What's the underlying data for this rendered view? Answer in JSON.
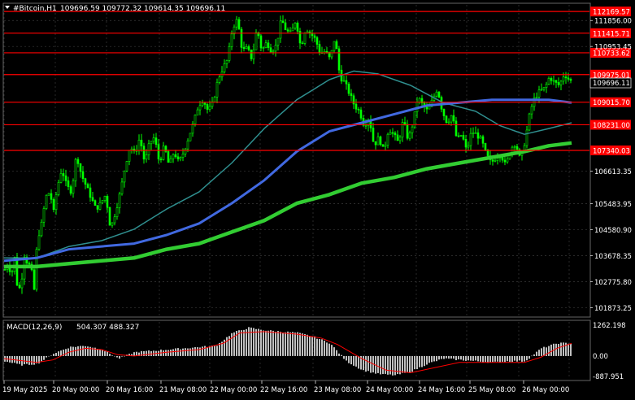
{
  "header": {
    "symbol_label": "#Bitcoin,H1",
    "ohlc": "109696.59 109772.32 109614.35 109696.11"
  },
  "indicator": {
    "name": "MACD(12,26,9)",
    "values": "504.307 488.327",
    "axis_labels": [
      "1262.198",
      "0.00",
      "-887.951"
    ]
  },
  "colors": {
    "background": "#000000",
    "grid": "#3a3a3a",
    "bull_candle": "#00ff00",
    "bear_candle": "#00ff00",
    "level_line": "#ff0000",
    "ma_fast": "#2f8f8f",
    "ma_mid": "#4169e1",
    "ma_slow": "#32cd32",
    "macd_hist": "#c0c0c0",
    "macd_signal": "#ff0000",
    "price_box_text": "#ffffff"
  },
  "price_axis": {
    "ticks": [
      "111856.00",
      "110953.45",
      "106613.35",
      "105483.95",
      "104580.90",
      "103678.35",
      "102775.80",
      "101873.25"
    ],
    "current_price": "109696.11"
  },
  "levels": [
    {
      "price": "112169.57"
    },
    {
      "price": "111415.71"
    },
    {
      "price": "110733.62"
    },
    {
      "price": "109975.01"
    },
    {
      "price": "109015.70"
    },
    {
      "price": "108231.00"
    },
    {
      "price": "107340.03"
    }
  ],
  "time_axis": {
    "labels": [
      "19 May 2025",
      "20 May 00:00",
      "20 May 16:00",
      "21 May 08:00",
      "22 May 00:00",
      "22 May 16:00",
      "23 May 08:00",
      "24 May 00:00",
      "24 May 16:00",
      "25 May 08:00",
      "26 May 00:00"
    ]
  },
  "chart_data": {
    "type": "candlestick",
    "symbol": "#Bitcoin",
    "timeframe": "H1",
    "ylim": [
      101600,
      112400
    ],
    "price_path": [
      [
        0,
        103200
      ],
      [
        4,
        103400
      ],
      [
        8,
        103000
      ],
      [
        12,
        103600
      ],
      [
        16,
        102400
      ],
      [
        20,
        102700
      ],
      [
        24,
        103700
      ],
      [
        28,
        103400
      ],
      [
        32,
        103300
      ],
      [
        36,
        102500
      ],
      [
        40,
        104300
      ],
      [
        44,
        104600
      ],
      [
        48,
        105300
      ],
      [
        52,
        105900
      ],
      [
        56,
        105800
      ],
      [
        60,
        105200
      ],
      [
        64,
        106000
      ],
      [
        70,
        106700
      ],
      [
        76,
        106100
      ],
      [
        82,
        105900
      ],
      [
        88,
        107200
      ],
      [
        94,
        106500
      ],
      [
        100,
        106100
      ],
      [
        106,
        105700
      ],
      [
        112,
        105300
      ],
      [
        118,
        105500
      ],
      [
        124,
        105800
      ],
      [
        130,
        104600
      ],
      [
        136,
        105200
      ],
      [
        142,
        105900
      ],
      [
        148,
        106800
      ],
      [
        154,
        107500
      ],
      [
        160,
        107200
      ],
      [
        166,
        107800
      ],
      [
        172,
        106900
      ],
      [
        178,
        107600
      ],
      [
        184,
        107800
      ],
      [
        190,
        106900
      ],
      [
        196,
        107500
      ],
      [
        202,
        106800
      ],
      [
        208,
        107300
      ],
      [
        214,
        106900
      ],
      [
        220,
        107300
      ],
      [
        226,
        107800
      ],
      [
        232,
        108300
      ],
      [
        238,
        108900
      ],
      [
        244,
        109100
      ],
      [
        250,
        108700
      ],
      [
        256,
        109000
      ],
      [
        262,
        109800
      ],
      [
        268,
        110200
      ],
      [
        274,
        110500
      ],
      [
        280,
        111600
      ],
      [
        286,
        111900
      ],
      [
        292,
        110800
      ],
      [
        298,
        110900
      ],
      [
        304,
        110500
      ],
      [
        310,
        111600
      ],
      [
        316,
        110800
      ],
      [
        322,
        111100
      ],
      [
        328,
        110800
      ],
      [
        334,
        111000
      ],
      [
        340,
        111900
      ],
      [
        346,
        111500
      ],
      [
        352,
        111400
      ],
      [
        358,
        111900
      ],
      [
        364,
        110900
      ],
      [
        370,
        111600
      ],
      [
        376,
        111400
      ],
      [
        382,
        111200
      ],
      [
        388,
        110700
      ],
      [
        394,
        110800
      ],
      [
        400,
        110500
      ],
      [
        406,
        111300
      ],
      [
        412,
        109900
      ],
      [
        418,
        109700
      ],
      [
        424,
        109300
      ],
      [
        430,
        108900
      ],
      [
        436,
        108700
      ],
      [
        442,
        108200
      ],
      [
        448,
        108500
      ],
      [
        454,
        107500
      ],
      [
        460,
        107800
      ],
      [
        466,
        107300
      ],
      [
        472,
        108100
      ],
      [
        478,
        107900
      ],
      [
        484,
        107600
      ],
      [
        490,
        108400
      ],
      [
        496,
        107700
      ],
      [
        502,
        108300
      ],
      [
        508,
        109200
      ],
      [
        514,
        108900
      ],
      [
        520,
        108700
      ],
      [
        526,
        109100
      ],
      [
        532,
        109500
      ],
      [
        538,
        108700
      ],
      [
        544,
        108300
      ],
      [
        550,
        108600
      ],
      [
        556,
        107700
      ],
      [
        562,
        107900
      ],
      [
        568,
        107300
      ],
      [
        574,
        108000
      ],
      [
        580,
        107900
      ],
      [
        586,
        107700
      ],
      [
        592,
        107200
      ],
      [
        598,
        106900
      ],
      [
        604,
        107100
      ],
      [
        610,
        107200
      ],
      [
        616,
        106800
      ],
      [
        622,
        107400
      ],
      [
        628,
        107600
      ],
      [
        634,
        107000
      ],
      [
        640,
        107700
      ],
      [
        646,
        108700
      ],
      [
        652,
        109200
      ],
      [
        658,
        109400
      ],
      [
        664,
        109500
      ],
      [
        670,
        109900
      ],
      [
        676,
        109700
      ],
      [
        682,
        109600
      ],
      [
        688,
        110000
      ],
      [
        694,
        109800
      ],
      [
        698,
        109700
      ]
    ],
    "ma_fast_path": [
      [
        0,
        103600
      ],
      [
        40,
        103600
      ],
      [
        80,
        104000
      ],
      [
        120,
        104200
      ],
      [
        160,
        104600
      ],
      [
        200,
        105300
      ],
      [
        240,
        105900
      ],
      [
        280,
        106900
      ],
      [
        320,
        108100
      ],
      [
        360,
        109100
      ],
      [
        400,
        109800
      ],
      [
        430,
        110100
      ],
      [
        460,
        110000
      ],
      [
        500,
        109600
      ],
      [
        540,
        109000
      ],
      [
        580,
        108700
      ],
      [
        610,
        108200
      ],
      [
        640,
        107900
      ],
      [
        670,
        108100
      ],
      [
        698,
        108300
      ]
    ],
    "ma_mid_path": [
      [
        0,
        103500
      ],
      [
        40,
        103600
      ],
      [
        80,
        103900
      ],
      [
        120,
        104000
      ],
      [
        160,
        104100
      ],
      [
        200,
        104400
      ],
      [
        240,
        104800
      ],
      [
        280,
        105500
      ],
      [
        320,
        106300
      ],
      [
        360,
        107300
      ],
      [
        400,
        108000
      ],
      [
        440,
        108300
      ],
      [
        480,
        108600
      ],
      [
        520,
        108900
      ],
      [
        560,
        109000
      ],
      [
        600,
        109100
      ],
      [
        640,
        109100
      ],
      [
        670,
        109100
      ],
      [
        698,
        109000
      ]
    ],
    "ma_slow_path": [
      [
        0,
        103300
      ],
      [
        40,
        103300
      ],
      [
        80,
        103400
      ],
      [
        120,
        103500
      ],
      [
        160,
        103600
      ],
      [
        200,
        103900
      ],
      [
        240,
        104100
      ],
      [
        280,
        104500
      ],
      [
        320,
        104900
      ],
      [
        360,
        105500
      ],
      [
        400,
        105800
      ],
      [
        440,
        106200
      ],
      [
        480,
        106400
      ],
      [
        520,
        106700
      ],
      [
        560,
        106900
      ],
      [
        600,
        107100
      ],
      [
        640,
        107300
      ],
      [
        670,
        107500
      ],
      [
        698,
        107600
      ]
    ],
    "macd": {
      "ylim": [
        -887.951,
        1262.198
      ],
      "histogram_path": [
        [
          0,
          -200
        ],
        [
          20,
          -350
        ],
        [
          40,
          -300
        ],
        [
          60,
          100
        ],
        [
          80,
          350
        ],
        [
          100,
          400
        ],
        [
          120,
          250
        ],
        [
          140,
          -100
        ],
        [
          160,
          150
        ],
        [
          180,
          200
        ],
        [
          200,
          250
        ],
        [
          220,
          300
        ],
        [
          240,
          350
        ],
        [
          260,
          400
        ],
        [
          280,
          900
        ],
        [
          300,
          1100
        ],
        [
          320,
          1000
        ],
        [
          340,
          950
        ],
        [
          360,
          900
        ],
        [
          380,
          750
        ],
        [
          400,
          500
        ],
        [
          420,
          -200
        ],
        [
          440,
          -550
        ],
        [
          460,
          -700
        ],
        [
          480,
          -750
        ],
        [
          500,
          -600
        ],
        [
          520,
          -300
        ],
        [
          540,
          -100
        ],
        [
          560,
          -150
        ],
        [
          580,
          -200
        ],
        [
          600,
          -250
        ],
        [
          620,
          -200
        ],
        [
          640,
          -200
        ],
        [
          660,
          300
        ],
        [
          680,
          500
        ],
        [
          698,
          500
        ]
      ],
      "signal_path": [
        [
          0,
          -100
        ],
        [
          40,
          -250
        ],
        [
          60,
          -150
        ],
        [
          80,
          150
        ],
        [
          100,
          300
        ],
        [
          120,
          250
        ],
        [
          140,
          50
        ],
        [
          160,
          0
        ],
        [
          200,
          150
        ],
        [
          240,
          250
        ],
        [
          270,
          500
        ],
        [
          290,
          900
        ],
        [
          320,
          950
        ],
        [
          360,
          850
        ],
        [
          390,
          700
        ],
        [
          410,
          450
        ],
        [
          440,
          -100
        ],
        [
          470,
          -550
        ],
        [
          500,
          -650
        ],
        [
          530,
          -450
        ],
        [
          560,
          -250
        ],
        [
          600,
          -250
        ],
        [
          640,
          -250
        ],
        [
          660,
          -50
        ],
        [
          680,
          300
        ],
        [
          698,
          490
        ]
      ]
    }
  }
}
